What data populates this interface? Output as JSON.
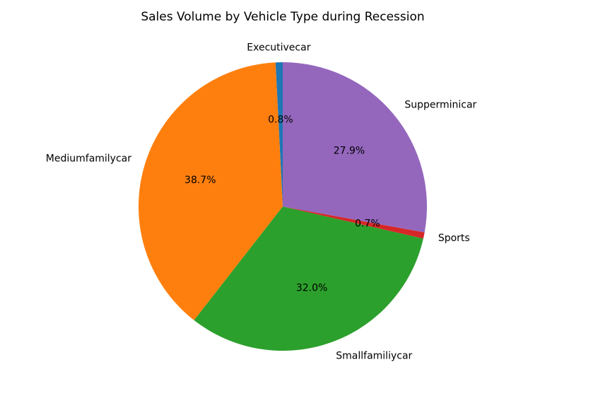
{
  "chart_data": {
    "type": "pie",
    "title": "Sales Volume by Vehicle Type during Recession",
    "categories": [
      "Executivecar",
      "Mediumfamilycar",
      "Smallfamiliycar",
      "Sports",
      "Supperminicar"
    ],
    "values": [
      0.8,
      38.7,
      32.0,
      0.7,
      27.9
    ],
    "percent_labels": [
      "0.8%",
      "38.7%",
      "32.0%",
      "0.7%",
      "27.9%"
    ],
    "colors": [
      "#1f77b4",
      "#ff7f0e",
      "#2ca02c",
      "#d62728",
      "#9467bd"
    ],
    "start_angle_deg": 90,
    "direction": "counterclockwise",
    "legend": "none"
  }
}
